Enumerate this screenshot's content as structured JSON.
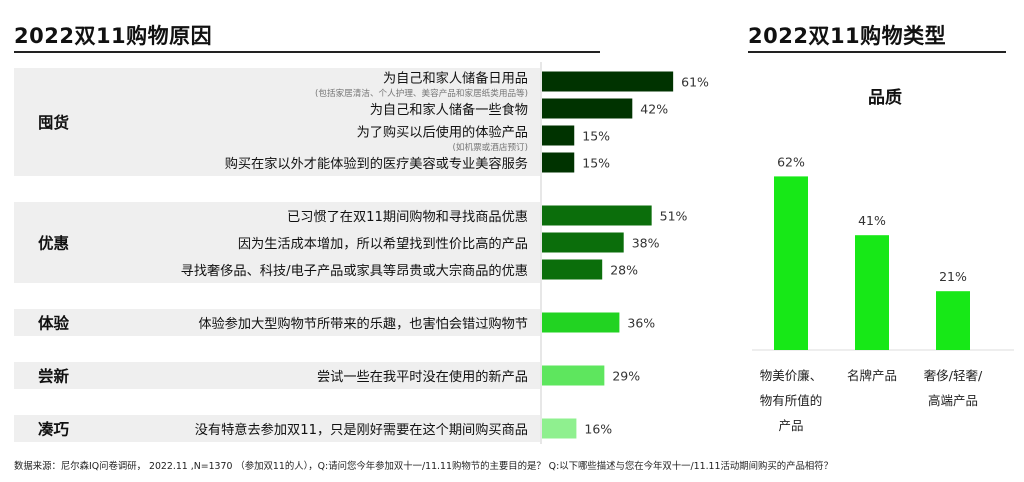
{
  "left": {
    "title": "2022双11购物原因",
    "chart_data": {
      "type": "bar",
      "orientation": "horizontal",
      "groups": [
        {
          "name": "囤货",
          "items": [
            {
              "label": "为自己和家人储备日用品",
              "note": "(包括家居清洁、个人护理、美容产品和家居纸类用品等)",
              "value": 61,
              "color": "#003300"
            },
            {
              "label": "为自己和家人储备一些食物",
              "value": 42,
              "color": "#003300"
            },
            {
              "label": "为了购买以后使用的体验产品",
              "note": "(如机票或酒店预订)",
              "value": 15,
              "color": "#003300"
            },
            {
              "label": "购买在家以外才能体验到的医疗美容或专业美容服务",
              "value": 15,
              "color": "#003300"
            }
          ]
        },
        {
          "name": "优惠",
          "items": [
            {
              "label": "已习惯了在双11期间购物和寻找商品优惠",
              "value": 51,
              "color": "#0b6e0b"
            },
            {
              "label": "因为生活成本增加，所以希望找到性价比高的产品",
              "value": 38,
              "color": "#0b6e0b"
            },
            {
              "label": "寻找奢侈品、科技/电子产品或家具等昂贵或大宗商品的优惠",
              "value": 28,
              "color": "#0b6e0b"
            }
          ]
        },
        {
          "name": "体验",
          "items": [
            {
              "label": "体验参加大型购物节所带来的乐趣，也害怕会错过购物节",
              "value": 36,
              "color": "#22d322"
            }
          ]
        },
        {
          "name": "尝新",
          "items": [
            {
              "label": "尝试一些在我平时没在使用的新产品",
              "value": 29,
              "color": "#5ee65e"
            }
          ]
        },
        {
          "name": "凑巧",
          "items": [
            {
              "label": "没有特意去参加双11，只是刚好需要在这个期间购买商品",
              "value": 16,
              "color": "#8ff08f"
            }
          ]
        }
      ],
      "value_suffix": "%"
    }
  },
  "right": {
    "title": "2022双11购物类型",
    "chart_data": {
      "type": "bar",
      "title": "品质",
      "categories": [
        [
          "物美价廉、",
          "物有所值的",
          "产品"
        ],
        [
          "名牌产品"
        ],
        [
          "奢侈/轻奢/",
          "高端产品"
        ]
      ],
      "values": [
        62,
        41,
        21
      ],
      "value_suffix": "%",
      "color": "#17e817"
    }
  },
  "footnote": "数据来源：尼尔森IQ问卷调研， 2022.11 ,N=1370 （参加双11的人），Q:请问您今年参加双十一/11.11购物节的主要目的是？ Q:以下哪些描述与您在今年双十一/11.11活动期间购买的产品相符？"
}
